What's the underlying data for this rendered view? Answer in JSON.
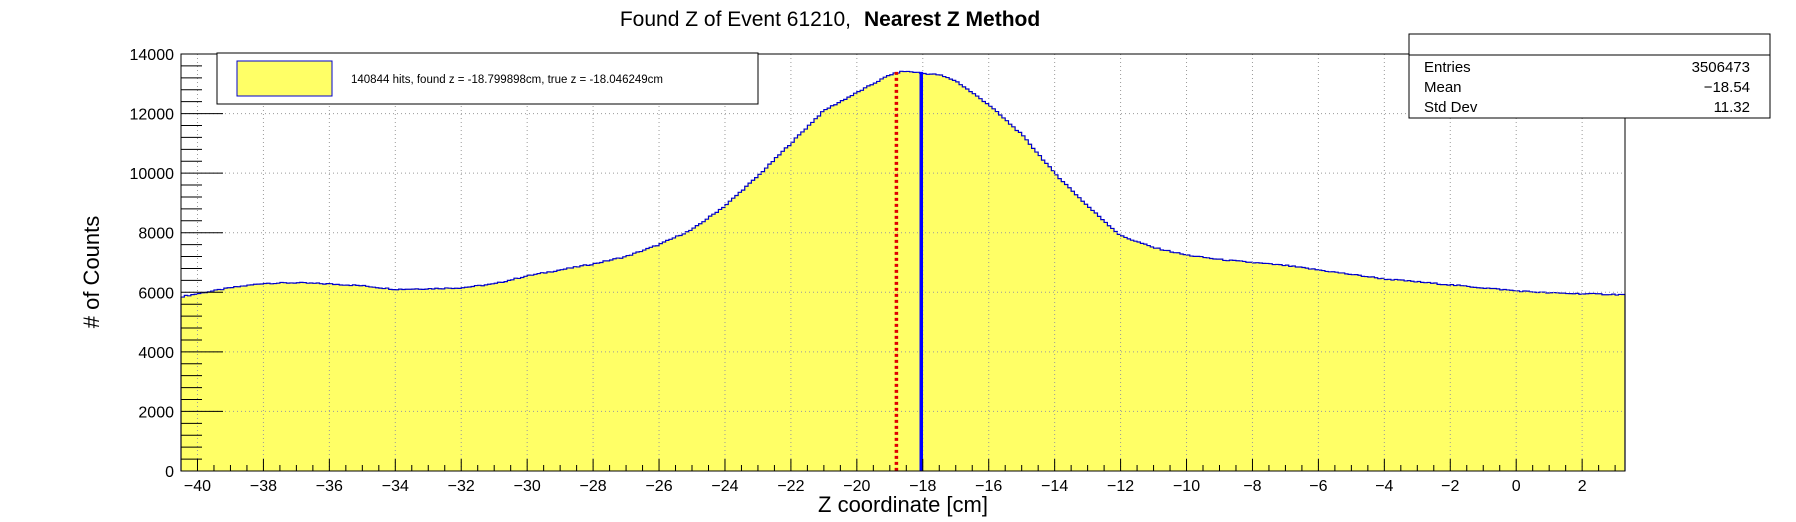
{
  "chart_data": {
    "type": "histogram",
    "title": "Found Z of Event 61210,",
    "title_bold": "Nearest Z Method",
    "xlabel": "Z coordinate [cm]",
    "ylabel": "# of Counts",
    "xlim": [
      -40.5,
      3.3
    ],
    "ylim": [
      0,
      14000
    ],
    "x_ticks": [
      -40,
      -38,
      -36,
      -34,
      -32,
      -30,
      -28,
      -26,
      -24,
      -22,
      -20,
      -18,
      -16,
      -14,
      -12,
      -10,
      -8,
      -6,
      -4,
      -2,
      0,
      2
    ],
    "x_tick_labels": [
      "−40",
      "−38",
      "−36",
      "−34",
      "−32",
      "−30",
      "−28",
      "−26",
      "−24",
      "−22",
      "−20",
      "−18",
      "−16",
      "−14",
      "−12",
      "−10",
      "−8",
      "−6",
      "−4",
      "−2",
      "0",
      "2"
    ],
    "y_ticks": [
      0,
      2000,
      4000,
      6000,
      8000,
      10000,
      12000,
      14000
    ],
    "y_tick_labels": [
      "0",
      "2000",
      "4000",
      "6000",
      "8000",
      "10000",
      "12000",
      "14000"
    ],
    "grid": true,
    "fill_color": "#ffff66",
    "line_color": "#0000cc",
    "curve": {
      "x": [
        -40.5,
        -40.0,
        -39.0,
        -38.0,
        -37.0,
        -36.0,
        -35.0,
        -34.0,
        -33.0,
        -32.0,
        -31.0,
        -30.0,
        -29.0,
        -28.0,
        -27.0,
        -26.0,
        -25.0,
        -24.0,
        -23.0,
        -22.0,
        -21.0,
        -20.0,
        -19.5,
        -19.0,
        -18.6,
        -18.3,
        -18.0,
        -17.5,
        -17.0,
        -16.0,
        -15.0,
        -14.0,
        -13.0,
        -12.0,
        -11.0,
        -10.0,
        -9.0,
        -8.0,
        -7.0,
        -6.0,
        -5.0,
        -4.0,
        -3.0,
        -2.0,
        -1.0,
        0.0,
        1.0,
        2.0,
        3.3
      ],
      "y": [
        5850,
        5950,
        6150,
        6300,
        6320,
        6280,
        6220,
        6100,
        6120,
        6150,
        6280,
        6550,
        6750,
        6950,
        7200,
        7600,
        8100,
        8900,
        9900,
        11000,
        12100,
        12700,
        13000,
        13300,
        13420,
        13400,
        13350,
        13300,
        13100,
        12300,
        11300,
        10000,
        8900,
        7900,
        7500,
        7250,
        7100,
        7000,
        6900,
        6750,
        6600,
        6450,
        6350,
        6250,
        6150,
        6050,
        5980,
        5950,
        5920
      ]
    },
    "markers": [
      {
        "name": "found z",
        "value": -18.799898,
        "color": "#e00000",
        "style": "dotted"
      },
      {
        "name": "true z",
        "value": -18.046249,
        "color": "#0000ff",
        "style": "solid"
      }
    ],
    "legend": {
      "text": "140844 hits, found z = -18.799898cm, true z = -18.046249cm",
      "position": "top-left"
    },
    "stats": {
      "position": "top-right",
      "rows": [
        {
          "label": "Entries",
          "value": "3506473"
        },
        {
          "label": "Mean",
          "value": "−18.54"
        },
        {
          "label": "Std Dev",
          "value": "11.32"
        }
      ]
    }
  }
}
